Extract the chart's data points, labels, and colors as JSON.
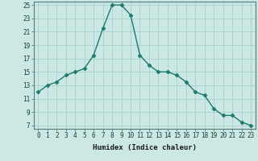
{
  "xlabel": "Humidex (Indice chaleur)",
  "x": [
    0,
    1,
    2,
    3,
    4,
    5,
    6,
    7,
    8,
    9,
    10,
    11,
    12,
    13,
    14,
    15,
    16,
    17,
    18,
    19,
    20,
    21,
    22,
    23
  ],
  "y": [
    12,
    13,
    13.5,
    14.5,
    15,
    15.5,
    17.5,
    21.5,
    25,
    25,
    23.5,
    17.5,
    16,
    15,
    15,
    14.5,
    13.5,
    12,
    11.5,
    9.5,
    8.5,
    8.5,
    7.5,
    7
  ],
  "line_color": "#1a7a6e",
  "marker": "D",
  "marker_size": 2.5,
  "bg_color": "#cce8e4",
  "grid_color": "#aacfcb",
  "ylim_min": 6.5,
  "ylim_max": 25.5,
  "yticks": [
    7,
    9,
    11,
    13,
    15,
    17,
    19,
    21,
    23,
    25
  ],
  "xlim_min": -0.5,
  "xlim_max": 23.5,
  "xticks": [
    0,
    1,
    2,
    3,
    4,
    5,
    6,
    7,
    8,
    9,
    10,
    11,
    12,
    13,
    14,
    15,
    16,
    17,
    18,
    19,
    20,
    21,
    22,
    23
  ],
  "tick_label_fontsize": 5.5,
  "xlabel_fontsize": 6.5,
  "line_width": 1.0
}
